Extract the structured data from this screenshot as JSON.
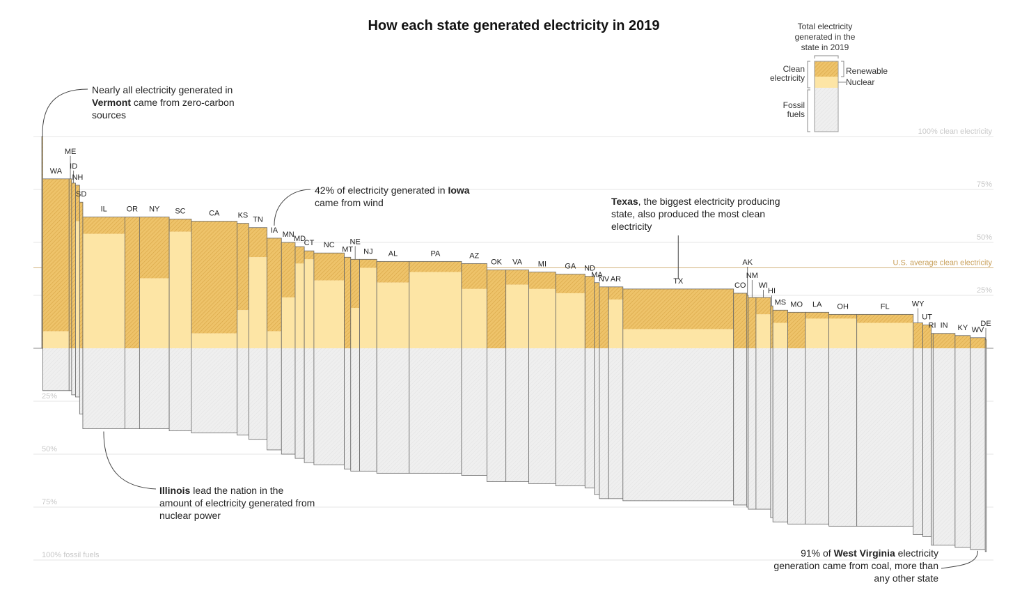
{
  "title": "How each state generated electricity in 2019",
  "annotations": {
    "vermont": {
      "pre": "Nearly all electricity generated in ",
      "bold": "Vermont",
      "post": " came from zero-carbon sources"
    },
    "iowa": {
      "pre": "42% of electricity generated in ",
      "bold": "Iowa",
      "post": " came from wind"
    },
    "texas": {
      "pre": "",
      "bold": "Texas",
      "post": ", the biggest electricity producing state, also produced the most clean electricity"
    },
    "illinois": {
      "pre": "",
      "bold": "Illinois",
      "post": " lead the nation in the amount of electricity generated from nuclear power"
    },
    "westvirginia": {
      "pre": "91% of ",
      "bold": "West Virginia",
      "post": " electricity generation came from coal, more than any other state"
    }
  },
  "legend": {
    "total_label": "Total electricity generated in the state in 2019",
    "clean_label": "Clean electricity",
    "renewable_label": "Renewable",
    "nuclear_label": "Nuclear",
    "fossil_label": "Fossil fuels"
  },
  "colors": {
    "renewable": "#eec36a",
    "renewable_hatch": "#d8a545",
    "nuclear": "#fde5a5",
    "fossil": "#efefef",
    "fossil_hatch": "#dedede",
    "us_average": "#c9a15c",
    "outline": "#666666",
    "grid": "#e4e4e4",
    "gridlabel": "#c8c8c8"
  },
  "chart_data": {
    "type": "bar",
    "description_axis": "Share of each state's generation: clean above the baseline, fossil below",
    "grid_labels_clean": [
      {
        "value": 100,
        "label": "100% clean electricity"
      },
      {
        "value": 75,
        "label": "75%"
      },
      {
        "value": 50,
        "label": "50%"
      },
      {
        "value": 25,
        "label": "25%"
      }
    ],
    "grid_labels_fossil": [
      {
        "value": 25,
        "label": "25%"
      },
      {
        "value": 50,
        "label": "50%"
      },
      {
        "value": 75,
        "label": "75%"
      },
      {
        "value": 100,
        "label": "100% fossil fuels"
      }
    ],
    "us_average": {
      "value": 38,
      "label": "U.S. average clean electricity"
    },
    "series_names": [
      "Renewable",
      "Nuclear",
      "Fossil fuels"
    ],
    "states": [
      {
        "code": "VT",
        "total": 2.0,
        "clean": 100,
        "nuclear": 0
      },
      {
        "code": "WA",
        "total": 115,
        "clean": 80,
        "nuclear": 8
      },
      {
        "code": "ME",
        "total": 11,
        "clean": 80,
        "nuclear": 0
      },
      {
        "code": "ID",
        "total": 17,
        "clean": 78,
        "nuclear": 0
      },
      {
        "code": "NH",
        "total": 18,
        "clean": 77,
        "nuclear": 60
      },
      {
        "code": "SD",
        "total": 14,
        "clean": 69,
        "nuclear": 0
      },
      {
        "code": "IL",
        "total": 184,
        "clean": 62,
        "nuclear": 54
      },
      {
        "code": "OR",
        "total": 64,
        "clean": 62,
        "nuclear": 0
      },
      {
        "code": "NY",
        "total": 130,
        "clean": 62,
        "nuclear": 33
      },
      {
        "code": "SC",
        "total": 97,
        "clean": 61,
        "nuclear": 55
      },
      {
        "code": "CA",
        "total": 200,
        "clean": 60,
        "nuclear": 7
      },
      {
        "code": "KS",
        "total": 51,
        "clean": 59,
        "nuclear": 18
      },
      {
        "code": "TN",
        "total": 80,
        "clean": 57,
        "nuclear": 43
      },
      {
        "code": "IA",
        "total": 63,
        "clean": 52,
        "nuclear": 8
      },
      {
        "code": "MN",
        "total": 60,
        "clean": 50,
        "nuclear": 24
      },
      {
        "code": "MD",
        "total": 40,
        "clean": 48,
        "nuclear": 40
      },
      {
        "code": "CT",
        "total": 42,
        "clean": 46,
        "nuclear": 42
      },
      {
        "code": "NC",
        "total": 133,
        "clean": 45,
        "nuclear": 32
      },
      {
        "code": "MT",
        "total": 28,
        "clean": 43,
        "nuclear": 0
      },
      {
        "code": "NE",
        "total": 39,
        "clean": 42,
        "nuclear": 19
      },
      {
        "code": "NJ",
        "total": 75,
        "clean": 42,
        "nuclear": 38
      },
      {
        "code": "AL",
        "total": 142,
        "clean": 41,
        "nuclear": 31
      },
      {
        "code": "PA",
        "total": 229,
        "clean": 41,
        "nuclear": 36
      },
      {
        "code": "AZ",
        "total": 111,
        "clean": 40,
        "nuclear": 28
      },
      {
        "code": "OK",
        "total": 83,
        "clean": 37,
        "nuclear": 0
      },
      {
        "code": "VA",
        "total": 100,
        "clean": 37,
        "nuclear": 30
      },
      {
        "code": "MI",
        "total": 118,
        "clean": 36,
        "nuclear": 28
      },
      {
        "code": "GA",
        "total": 128,
        "clean": 35,
        "nuclear": 26
      },
      {
        "code": "ND",
        "total": 41,
        "clean": 34,
        "nuclear": 0
      },
      {
        "code": "MA",
        "total": 22,
        "clean": 31,
        "nuclear": 0
      },
      {
        "code": "NV",
        "total": 40,
        "clean": 29,
        "nuclear": 0
      },
      {
        "code": "AR",
        "total": 63,
        "clean": 29,
        "nuclear": 23
      },
      {
        "code": "TX",
        "total": 484,
        "clean": 28,
        "nuclear": 9
      },
      {
        "code": "CO",
        "total": 58,
        "clean": 26,
        "nuclear": 0
      },
      {
        "code": "AK",
        "total": 6,
        "clean": 25,
        "nuclear": 0
      },
      {
        "code": "NM",
        "total": 34,
        "clean": 24,
        "nuclear": 0
      },
      {
        "code": "WI",
        "total": 64,
        "clean": 24,
        "nuclear": 16
      },
      {
        "code": "HI",
        "total": 10,
        "clean": 20,
        "nuclear": 0
      },
      {
        "code": "MS",
        "total": 65,
        "clean": 18,
        "nuclear": 12
      },
      {
        "code": "MO",
        "total": 77,
        "clean": 17,
        "nuclear": 0
      },
      {
        "code": "LA",
        "total": 103,
        "clean": 17,
        "nuclear": 14
      },
      {
        "code": "OH",
        "total": 122,
        "clean": 16,
        "nuclear": 14
      },
      {
        "code": "FL",
        "total": 247,
        "clean": 16,
        "nuclear": 12
      },
      {
        "code": "WY",
        "total": 42,
        "clean": 12,
        "nuclear": 0
      },
      {
        "code": "UT",
        "total": 37,
        "clean": 11,
        "nuclear": 0
      },
      {
        "code": "RI",
        "total": 8,
        "clean": 7,
        "nuclear": 0
      },
      {
        "code": "IN",
        "total": 96,
        "clean": 7,
        "nuclear": 0
      },
      {
        "code": "KY",
        "total": 67,
        "clean": 6,
        "nuclear": 0
      },
      {
        "code": "WV",
        "total": 65,
        "clean": 5,
        "nuclear": 0
      },
      {
        "code": "DE",
        "total": 5,
        "clean": 4,
        "nuclear": 0
      }
    ]
  }
}
